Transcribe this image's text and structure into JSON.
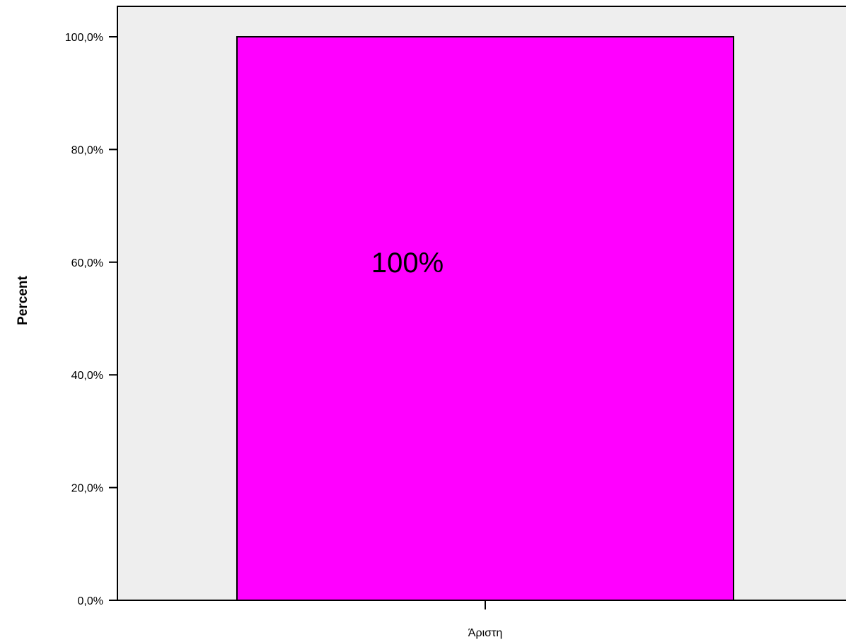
{
  "chart_data": {
    "type": "bar",
    "categories": [
      "Άριστη"
    ],
    "values": [
      100
    ],
    "data_labels": [
      "100%"
    ],
    "ylabel": "Percent",
    "xlabel": "",
    "ylim": [
      0,
      100
    ],
    "yticks": [
      0,
      20,
      40,
      60,
      80,
      100
    ],
    "ytick_labels": [
      "0,0%",
      "20,0%",
      "40,0%",
      "60,0%",
      "80,0%",
      "100,0%"
    ],
    "grid": false,
    "legend": "none"
  },
  "colors": {
    "bar_fill": "#ff00ff",
    "plot_background": "#eeeeee",
    "axis_line": "#000000"
  }
}
